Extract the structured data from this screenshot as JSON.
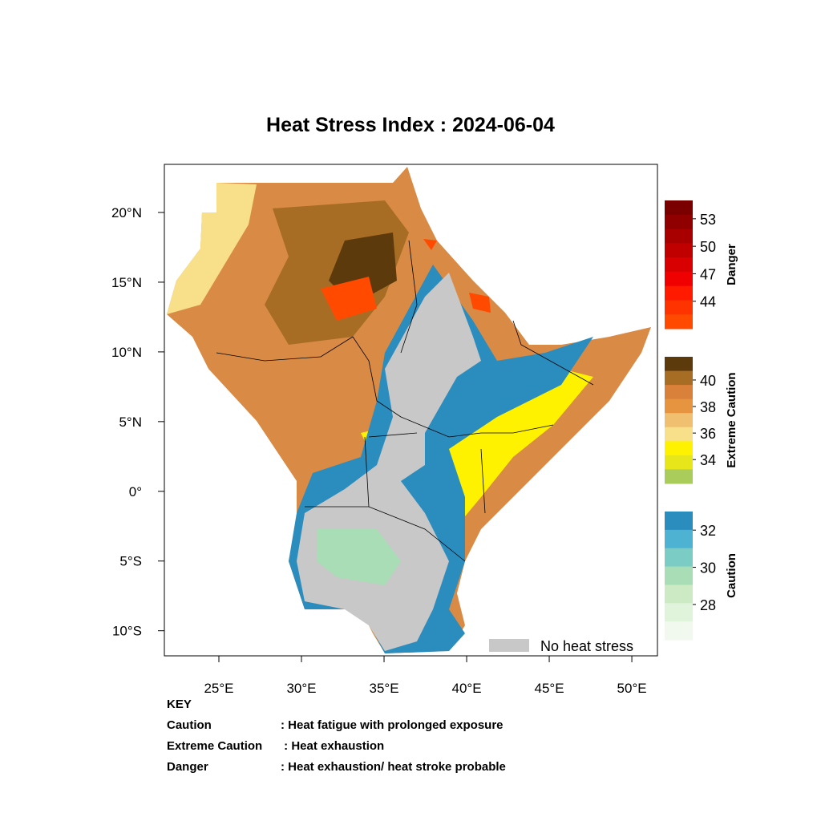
{
  "map": {
    "title": "Heat Stress Index : 2024-06-04",
    "xlim": [
      21.7,
      51.55
    ],
    "ylim": [
      -11.8,
      23.45
    ],
    "xticks": [
      {
        "value": 25,
        "label": "25°E"
      },
      {
        "value": 30,
        "label": "30°E"
      },
      {
        "value": 35,
        "label": "35°E"
      },
      {
        "value": 40,
        "label": "40°E"
      },
      {
        "value": 45,
        "label": "45°E"
      },
      {
        "value": 50,
        "label": "50°E"
      }
    ],
    "yticks": [
      {
        "value": 20,
        "label": "20°N"
      },
      {
        "value": 15,
        "label": "15°N"
      },
      {
        "value": 10,
        "label": "10°N"
      },
      {
        "value": 5,
        "label": "5°N"
      },
      {
        "value": 0,
        "label": "0°"
      },
      {
        "value": -5,
        "label": "5°S"
      },
      {
        "value": -10,
        "label": "10°S"
      }
    ],
    "legend": {
      "label": "No heat stress",
      "color": "#c8c8c8"
    },
    "colorbars": [
      {
        "title": "Danger",
        "lim": [
          41,
          55
        ],
        "ticks": [
          53,
          50,
          47,
          44
        ],
        "colors": [
          "#7a0000",
          "#900000",
          "#a80000",
          "#c00000",
          "#d80000",
          "#f00000",
          "#ff1a00",
          "#ff3300",
          "#ff4a00"
        ]
      },
      {
        "title": "Extreme Caution",
        "lim": [
          32.2,
          41.75
        ],
        "ticks": [
          40,
          38,
          36,
          34
        ],
        "colors": [
          "#5c3a0b",
          "#a86d24",
          "#d9803a",
          "#e6943f",
          "#f0c070",
          "#f8e08a",
          "#fff200",
          "#e6e61a",
          "#a9cc5a"
        ]
      },
      {
        "title": "Caution",
        "lim": [
          26.1,
          33
        ],
        "ticks": [
          32,
          30,
          28
        ],
        "colors": [
          "#2b8cbe",
          "#4eb3d3",
          "#7bccc4",
          "#a8ddb5",
          "#ccebc5",
          "#e0f3db",
          "#f1f9ee"
        ]
      }
    ],
    "key": {
      "heading": "KEY",
      "rows": [
        [
          "Caution",
          ": Heat fatigue with prolonged exposure"
        ],
        [
          "Extreme Caution",
          " : Heat exhaustion"
        ],
        [
          "Danger",
          ": Heat exhaustion/ heat stroke probable"
        ]
      ]
    }
  }
}
